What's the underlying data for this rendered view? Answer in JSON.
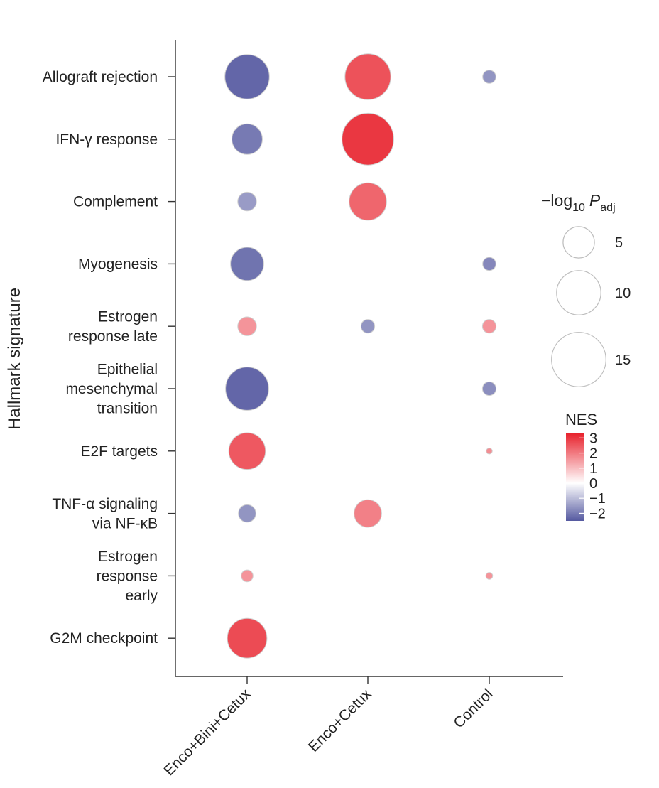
{
  "chart_data": {
    "type": "scatter",
    "title": "",
    "xlabel": "",
    "ylabel": "Hallmark signature",
    "categories": [
      "Enco+Bini+Cetux",
      "Enco+Cetux",
      "Control"
    ],
    "rows": [
      {
        "lines": [
          "Allograft rejection"
        ]
      },
      {
        "lines": [
          "IFN-γ response"
        ]
      },
      {
        "lines": [
          "Complement"
        ]
      },
      {
        "lines": [
          "Myogenesis"
        ]
      },
      {
        "lines": [
          "Estrogen",
          "response late"
        ]
      },
      {
        "lines": [
          "Epithelial",
          "mesenchymal",
          "transition"
        ]
      },
      {
        "lines": [
          "E2F targets"
        ]
      },
      {
        "lines": [
          "TNF-α signaling",
          "via NF-κB"
        ]
      },
      {
        "lines": [
          "Estrogen",
          "response",
          "early"
        ]
      },
      {
        "lines": [
          "G2M checkpoint"
        ]
      }
    ],
    "points": [
      {
        "signature": 0,
        "group": 0,
        "nes": -2.3,
        "neglog10_padj": 17
      },
      {
        "signature": 0,
        "group": 1,
        "nes": 2.6,
        "neglog10_padj": 18
      },
      {
        "signature": 0,
        "group": 2,
        "nes": -1.6,
        "neglog10_padj": 1.5
      },
      {
        "signature": 1,
        "group": 0,
        "nes": -2.0,
        "neglog10_padj": 8
      },
      {
        "signature": 1,
        "group": 1,
        "nes": 3.0,
        "neglog10_padj": 23
      },
      {
        "signature": 2,
        "group": 0,
        "nes": -1.5,
        "neglog10_padj": 3
      },
      {
        "signature": 2,
        "group": 1,
        "nes": 2.3,
        "neglog10_padj": 12
      },
      {
        "signature": 3,
        "group": 0,
        "nes": -2.1,
        "neglog10_padj": 9.5
      },
      {
        "signature": 3,
        "group": 2,
        "nes": -1.8,
        "neglog10_padj": 1.5
      },
      {
        "signature": 4,
        "group": 0,
        "nes": 1.6,
        "neglog10_padj": 3
      },
      {
        "signature": 4,
        "group": 1,
        "nes": -1.6,
        "neglog10_padj": 1.6
      },
      {
        "signature": 4,
        "group": 2,
        "nes": 1.6,
        "neglog10_padj": 1.6
      },
      {
        "signature": 5,
        "group": 0,
        "nes": -2.3,
        "neglog10_padj": 16
      },
      {
        "signature": 5,
        "group": 2,
        "nes": -1.7,
        "neglog10_padj": 1.6
      },
      {
        "signature": 6,
        "group": 0,
        "nes": 2.5,
        "neglog10_padj": 11.5
      },
      {
        "signature": 6,
        "group": 2,
        "nes": 1.7,
        "neglog10_padj": 0.3
      },
      {
        "signature": 7,
        "group": 0,
        "nes": -1.6,
        "neglog10_padj": 2.6
      },
      {
        "signature": 7,
        "group": 1,
        "nes": 1.9,
        "neglog10_padj": 6.5
      },
      {
        "signature": 8,
        "group": 0,
        "nes": 1.6,
        "neglog10_padj": 1.2
      },
      {
        "signature": 8,
        "group": 2,
        "nes": 1.6,
        "neglog10_padj": 0.4
      },
      {
        "signature": 9,
        "group": 0,
        "nes": 2.7,
        "neglog10_padj": 13.5
      }
    ],
    "size_legend": {
      "title_main": "−log",
      "title_sub": "10",
      "title_p": "P",
      "title_p_sub": "adj",
      "values": [
        5,
        10,
        15
      ]
    },
    "color_legend": {
      "title": "NES",
      "range": [
        -2.5,
        3.3
      ],
      "ticks": [
        3,
        2,
        1,
        0,
        -1,
        -2
      ],
      "tick_labels": [
        "3",
        "2",
        "1",
        "0",
        "−1",
        "−2"
      ],
      "low_color": "#5559a0",
      "mid_color": "#ffffff",
      "high_color": "#e8232e"
    }
  }
}
